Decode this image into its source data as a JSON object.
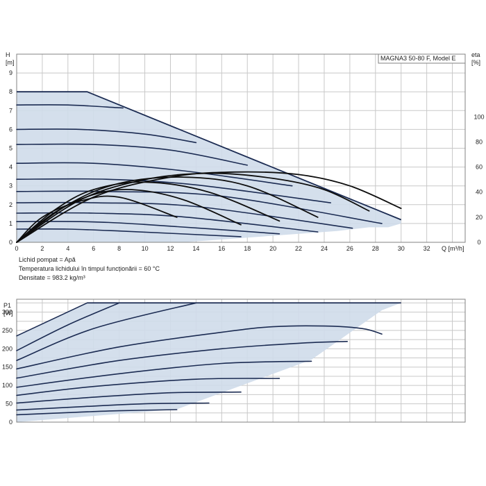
{
  "chart_data": [
    {
      "type": "line",
      "title": "MAGNA3 50-80 F, Model E",
      "xlabel": "Q [m³/h]",
      "ylabel": "H\n[m]",
      "y2label": "eta\n[%]",
      "xlim": [
        0,
        35
      ],
      "ylim": [
        0,
        10
      ],
      "y2lim": [
        0,
        150
      ],
      "xticks": [
        0,
        2,
        4,
        6,
        8,
        10,
        12,
        14,
        16,
        18,
        20,
        22,
        24,
        26,
        28,
        30,
        32
      ],
      "yticks": [
        0,
        1,
        2,
        3,
        4,
        5,
        6,
        7,
        8,
        9
      ],
      "y2ticks": [
        0,
        20,
        40,
        60,
        80,
        100
      ],
      "grid": true,
      "operating_area_color": "#cfdcea",
      "curve_color": "#1b2b52",
      "efficiency_color": "#0d0d0d",
      "envelope": [
        [
          0,
          8
        ],
        [
          5.5,
          8
        ],
        [
          30,
          1.2
        ],
        [
          30,
          1.0
        ],
        [
          29,
          0.8
        ],
        [
          27.5,
          0.8
        ],
        [
          25,
          0.6
        ],
        [
          13,
          0
        ],
        [
          0,
          0
        ]
      ],
      "head_curves": [
        {
          "x": [
            0,
            4,
            8,
            8.0
          ],
          "y": [
            7.3,
            7.3,
            7.15,
            7.15
          ]
        },
        {
          "x": [
            0,
            5,
            10,
            14
          ],
          "y": [
            6.0,
            6.0,
            5.75,
            5.3
          ]
        },
        {
          "x": [
            0,
            6,
            12,
            18.0
          ],
          "y": [
            5.2,
            5.2,
            4.9,
            4.1
          ]
        },
        {
          "x": [
            0,
            6,
            13,
            21.5
          ],
          "y": [
            4.2,
            4.2,
            3.8,
            3.0
          ]
        },
        {
          "x": [
            0,
            7,
            14,
            24.5
          ],
          "y": [
            3.35,
            3.35,
            3.05,
            2.1
          ]
        },
        {
          "x": [
            0,
            7,
            16,
            28.5
          ],
          "y": [
            2.7,
            2.7,
            2.45,
            1.0
          ]
        },
        {
          "x": [
            0,
            6,
            14,
            26.2
          ],
          "y": [
            2.1,
            2.1,
            1.9,
            0.75
          ]
        },
        {
          "x": [
            0,
            6,
            13,
            23.5
          ],
          "y": [
            1.55,
            1.55,
            1.35,
            0.55
          ]
        },
        {
          "x": [
            0,
            5,
            10,
            20.5
          ],
          "y": [
            1.1,
            1.1,
            0.95,
            0.45
          ]
        },
        {
          "x": [
            0,
            4,
            8,
            17.5
          ],
          "y": [
            0.7,
            0.7,
            0.6,
            0.3
          ]
        }
      ],
      "efficiency_curves": [
        {
          "x": [
            0,
            6,
            12,
            17,
            22,
            26,
            30
          ],
          "y": [
            0,
            36,
            52,
            56,
            54,
            45,
            27
          ]
        },
        {
          "x": [
            0,
            5,
            10,
            15,
            20,
            24,
            27.5
          ],
          "y": [
            0,
            34,
            50,
            55,
            51,
            42,
            25
          ]
        },
        {
          "x": [
            0,
            4,
            8,
            13,
            18,
            23.5
          ],
          "y": [
            0,
            30,
            47,
            52,
            45,
            20
          ]
        },
        {
          "x": [
            0,
            3,
            6,
            10,
            15,
            20.5
          ],
          "y": [
            0,
            26,
            42,
            48,
            40,
            17
          ]
        },
        {
          "x": [
            0,
            3,
            6,
            9,
            13,
            17.5
          ],
          "y": [
            0,
            24,
            38,
            42,
            34,
            14
          ]
        },
        {
          "x": [
            0,
            2,
            5,
            8,
            12.5
          ],
          "y": [
            0,
            20,
            33,
            36,
            20
          ]
        }
      ],
      "info_lines": [
        "Lichid pompat = Apă",
        "Temperatura lichidului în timpul funcționării = 60 °C",
        "Densitate = 983.2 kg/m³"
      ]
    },
    {
      "type": "line",
      "xlabel": "",
      "ylabel": "P1\n[W]",
      "xlim": [
        0,
        35
      ],
      "ylim": [
        0,
        335
      ],
      "yticks": [
        0,
        50,
        100,
        150,
        200,
        250,
        300
      ],
      "grid": true,
      "envelope": [
        [
          0,
          235
        ],
        [
          5.5,
          325
        ],
        [
          30,
          325
        ],
        [
          28.5,
          305
        ],
        [
          23,
          170
        ],
        [
          12.5,
          35
        ],
        [
          0,
          0
        ]
      ],
      "power_curves": [
        {
          "x": [
            0,
            5.5
          ],
          "y": [
            235,
            325
          ]
        },
        {
          "x": [
            0,
            4,
            8.0
          ],
          "y": [
            195,
            265,
            325
          ]
        },
        {
          "x": [
            0,
            6,
            14.0
          ],
          "y": [
            168,
            255,
            325
          ]
        },
        {
          "x": [
            0,
            8,
            16,
            20,
            24,
            27,
            28.5
          ],
          "y": [
            145,
            205,
            245,
            260,
            262,
            255,
            240
          ]
        },
        {
          "x": [
            0,
            8,
            16,
            22,
            25.8
          ],
          "y": [
            120,
            168,
            200,
            215,
            220
          ]
        },
        {
          "x": [
            0,
            8,
            16,
            23
          ],
          "y": [
            95,
            132,
            160,
            166
          ]
        },
        {
          "x": [
            0,
            6,
            14,
            20.5
          ],
          "y": [
            73,
            97,
            117,
            119
          ]
        },
        {
          "x": [
            0,
            6,
            12,
            17.5
          ],
          "y": [
            52,
            68,
            80,
            82
          ]
        },
        {
          "x": [
            0,
            5,
            10,
            15.0
          ],
          "y": [
            33,
            42,
            50,
            52
          ]
        },
        {
          "x": [
            0,
            4,
            8,
            12.5
          ],
          "y": [
            20,
            26,
            31,
            34
          ]
        }
      ]
    }
  ]
}
